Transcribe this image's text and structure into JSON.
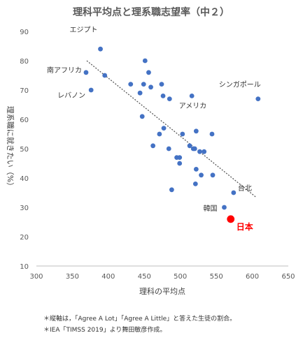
{
  "chart_data": {
    "type": "scatter",
    "title": "理科平均点と理系職志望率（中２）",
    "xlabel": "理科の平均点",
    "ylabel": "理系職に就きたい（%）",
    "xlim": [
      300,
      650
    ],
    "ylim": [
      10,
      90
    ],
    "x_ticks": [
      300,
      350,
      400,
      450,
      500,
      550,
      600,
      650
    ],
    "y_ticks": [
      10,
      20,
      30,
      40,
      50,
      60,
      70,
      80,
      90
    ],
    "grid": false,
    "series": [
      {
        "name": "",
        "color": "#4472C4",
        "points": [
          {
            "x": 389,
            "y": 84
          },
          {
            "x": 369,
            "y": 76
          },
          {
            "x": 395,
            "y": 75
          },
          {
            "x": 376,
            "y": 70
          },
          {
            "x": 451,
            "y": 80
          },
          {
            "x": 456,
            "y": 76
          },
          {
            "x": 431,
            "y": 72
          },
          {
            "x": 449,
            "y": 72
          },
          {
            "x": 459,
            "y": 71
          },
          {
            "x": 474,
            "y": 72
          },
          {
            "x": 444,
            "y": 69
          },
          {
            "x": 476,
            "y": 68
          },
          {
            "x": 485,
            "y": 67
          },
          {
            "x": 516,
            "y": 68
          },
          {
            "x": 447,
            "y": 61
          },
          {
            "x": 477,
            "y": 57
          },
          {
            "x": 471,
            "y": 55
          },
          {
            "x": 503,
            "y": 55
          },
          {
            "x": 522,
            "y": 56
          },
          {
            "x": 544,
            "y": 55
          },
          {
            "x": 462,
            "y": 51
          },
          {
            "x": 484,
            "y": 50
          },
          {
            "x": 513,
            "y": 51
          },
          {
            "x": 518,
            "y": 50
          },
          {
            "x": 520,
            "y": 50
          },
          {
            "x": 527,
            "y": 49
          },
          {
            "x": 533,
            "y": 49
          },
          {
            "x": 495,
            "y": 47
          },
          {
            "x": 499,
            "y": 47
          },
          {
            "x": 499,
            "y": 45
          },
          {
            "x": 522,
            "y": 43
          },
          {
            "x": 529,
            "y": 41
          },
          {
            "x": 545,
            "y": 41
          },
          {
            "x": 521,
            "y": 38
          },
          {
            "x": 488,
            "y": 36
          },
          {
            "x": 574,
            "y": 35
          },
          {
            "x": 561,
            "y": 30
          },
          {
            "x": 608,
            "y": 67
          }
        ]
      },
      {
        "name": "日本",
        "color": "#FF0000",
        "points": [
          {
            "x": 570,
            "y": 26
          }
        ]
      }
    ],
    "trendline": {
      "style": "dotted",
      "color": "#595959",
      "x": [
        370,
        605
      ],
      "y": [
        80,
        33.5
      ]
    },
    "annotations": [
      {
        "text": "エジプト",
        "x": 389,
        "y": 84,
        "pos": "above-left",
        "color": "#333333"
      },
      {
        "text": "南アフリカ",
        "x": 369,
        "y": 76,
        "pos": "left",
        "color": "#333333"
      },
      {
        "text": "レバノン",
        "x": 376,
        "y": 70,
        "pos": "below-left",
        "color": "#333333"
      },
      {
        "text": "シンガポール",
        "x": 608,
        "y": 67,
        "pos": "above",
        "color": "#333333"
      },
      {
        "text": "アメリカ",
        "x": 527,
        "y": 56,
        "pos": "above",
        "color": "#333333"
      },
      {
        "text": "台北",
        "x": 574,
        "y": 35,
        "pos": "below-right",
        "color": "#333333"
      },
      {
        "text": "韓国",
        "x": 561,
        "y": 30,
        "pos": "left",
        "color": "#333333"
      },
      {
        "text": "日本",
        "x": 570,
        "y": 26,
        "pos": "below-right",
        "color": "#FF0000",
        "bold": true
      }
    ]
  },
  "footnotes": [
    "＊縦軸は，「Agree A Lot」「Agree A Little」と答えた生徒の割合。",
    "＊IEA「TIMSS 2019」より舞田敏彦作成。"
  ]
}
